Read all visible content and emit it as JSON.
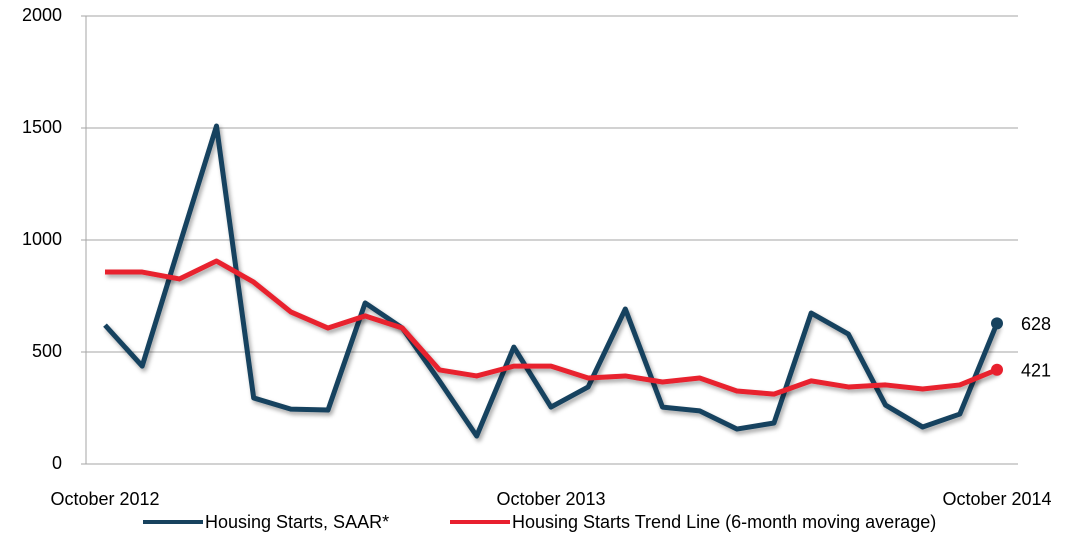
{
  "chart_data": {
    "type": "line",
    "categories": [
      "October 2012",
      null,
      null,
      null,
      null,
      null,
      null,
      null,
      null,
      null,
      null,
      null,
      "October 2013",
      null,
      null,
      null,
      null,
      null,
      null,
      null,
      null,
      null,
      null,
      null,
      "October 2014"
    ],
    "series": [
      {
        "name": "Housing Starts, SAAR*",
        "color": "#17425e",
        "values": [
          620,
          437,
          975,
          1509,
          295,
          245,
          241,
          719,
          607,
          370,
          125,
          522,
          254,
          344,
          692,
          254,
          237,
          156,
          183,
          674,
          580,
          263,
          165,
          223,
          628
        ]
      },
      {
        "name": "Housing Starts Trend Line (6-month moving average)",
        "color": "#e8202e",
        "values": [
          857,
          857,
          826,
          906,
          812,
          679,
          607,
          661,
          607,
          420,
          393,
          437,
          437,
          384,
          393,
          366,
          384,
          326,
          312,
          371,
          344,
          353,
          335,
          353,
          421
        ]
      }
    ],
    "ylim": [
      0,
      2000
    ],
    "yticks": [
      0,
      500,
      1000,
      1500,
      2000
    ],
    "grid": true
  }
}
